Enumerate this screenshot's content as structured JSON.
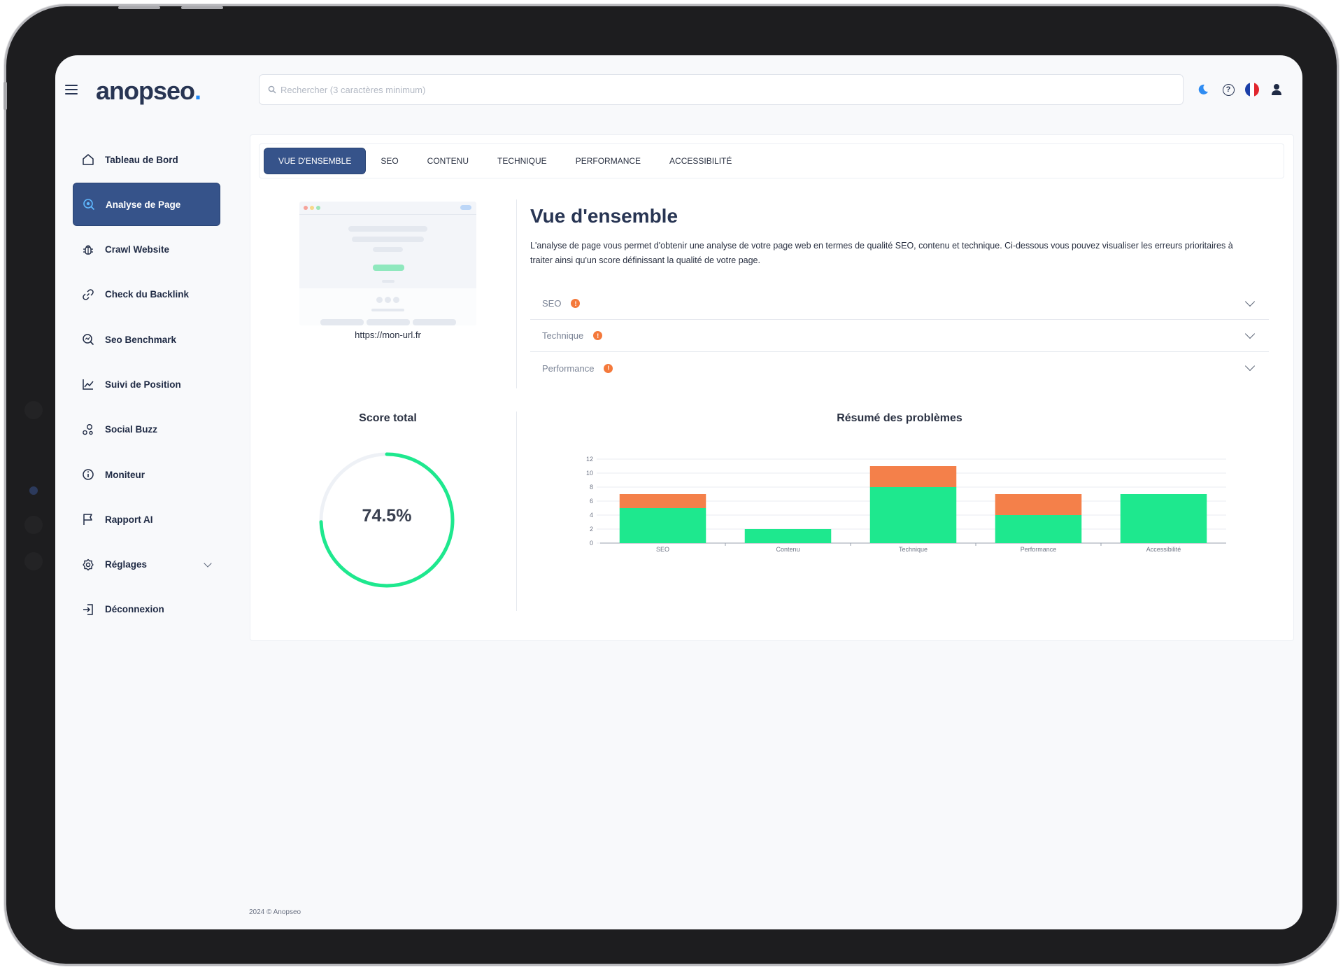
{
  "app": {
    "logo_text": "anopseo",
    "search_placeholder": "Rechercher (3 caractères minimum)",
    "footer": "2024 © Anopseo"
  },
  "header_icons": [
    "moon-icon",
    "help-icon",
    "french-flag-icon",
    "user-icon"
  ],
  "sidebar": {
    "items": [
      {
        "label": "Tableau de Bord",
        "icon": "home-icon"
      },
      {
        "label": "Analyse de Page",
        "icon": "search-analysis-icon",
        "active": true
      },
      {
        "label": "Crawl Website",
        "icon": "bug-icon"
      },
      {
        "label": "Check du Backlink",
        "icon": "link-icon"
      },
      {
        "label": "Seo Benchmark",
        "icon": "benchmark-icon"
      },
      {
        "label": "Suivi de Position",
        "icon": "chart-line-icon"
      },
      {
        "label": "Social Buzz",
        "icon": "social-icon"
      },
      {
        "label": "Moniteur",
        "icon": "info-icon"
      },
      {
        "label": "Rapport AI",
        "icon": "flag-icon"
      },
      {
        "label": "Réglages",
        "icon": "settings-icon",
        "has_chevron": true
      },
      {
        "label": "Déconnexion",
        "icon": "logout-icon"
      }
    ]
  },
  "tabs": [
    "VUE D'ENSEMBLE",
    "SEO",
    "CONTENU",
    "TECHNIQUE",
    "PERFORMANCE",
    "ACCESSIBILITÉ"
  ],
  "active_tab": "VUE D'ENSEMBLE",
  "overview": {
    "title": "Vue d'ensemble",
    "description": "L'analyse de page vous permet d'obtenir une analyse de votre page web en termes de qualité SEO, contenu et technique. Ci-dessous vous pouvez visualiser les erreurs prioritaires à traiter ainsi qu'un score définissant la qualité de votre page.",
    "preview_url": "https://mon-url.fr",
    "accordions": [
      "SEO",
      "Technique",
      "Performance"
    ]
  },
  "score": {
    "title": "Score total",
    "value": 74.5,
    "display": "74.5%"
  },
  "colors": {
    "primary": "#36538a",
    "green": "#1ee88e",
    "orange": "#f4804a",
    "warning": "#f4793b"
  },
  "chart_data": {
    "type": "bar",
    "stacked": true,
    "title": "Résumé des problèmes",
    "categories": [
      "SEO",
      "Contenu",
      "Technique",
      "Performance",
      "Accessibilité"
    ],
    "series": [
      {
        "color": "#1ee88e",
        "values": [
          5,
          2,
          8,
          4,
          7
        ]
      },
      {
        "color": "#f4804a",
        "values": [
          2,
          0,
          3,
          3,
          0
        ]
      }
    ],
    "ylim": [
      0,
      12
    ],
    "yticks": [
      0,
      2,
      4,
      6,
      8,
      10,
      12
    ],
    "grid": true,
    "legend": "none"
  }
}
